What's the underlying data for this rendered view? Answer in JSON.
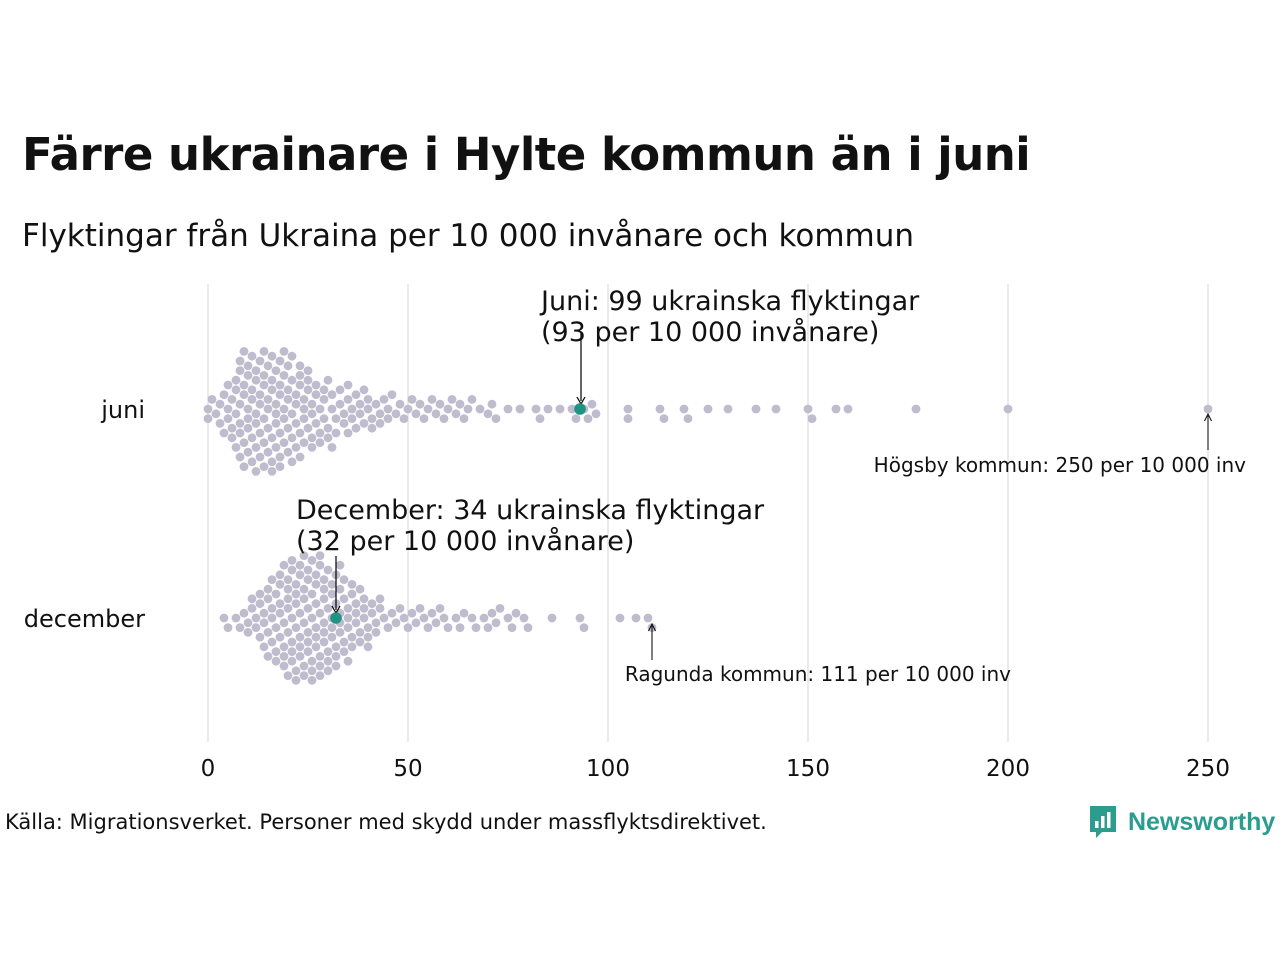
{
  "header": {
    "title": "Färre ukrainare i Hylte kommun än i juni",
    "subtitle": "Flyktingar från Ukraina per 10 000 invånare och kommun"
  },
  "colors": {
    "dot": "#bfbccd",
    "highlight": "#1f9384",
    "grid": "#d6d6d6",
    "text": "#111111",
    "brand": "#2a9d8f"
  },
  "chart_data": {
    "type": "scatter",
    "subtype": "beeswarm",
    "title": "Färre ukrainare i Hylte kommun än i juni",
    "subtitle": "Flyktingar från Ukraina per 10 000 invånare och kommun",
    "xlabel": "",
    "ylabel": "",
    "xlim": [
      0,
      250
    ],
    "xticks": [
      0,
      50,
      100,
      150,
      200,
      250
    ],
    "grid": true,
    "categories": [
      "juni",
      "december"
    ],
    "series": [
      {
        "name": "juni",
        "highlight": {
          "label": "Hylte kommun",
          "value": 93
        },
        "annotation": [
          "Juni: 99 ukrainska flyktingar",
          "(93 per 10 000 invånare)"
        ],
        "outlier": {
          "text": "Högsby kommun: 250 per 10 000 inv",
          "value": 250
        },
        "values": [
          0,
          0,
          1,
          2,
          3,
          3,
          4,
          4,
          5,
          5,
          5,
          6,
          6,
          6,
          7,
          7,
          7,
          7,
          8,
          8,
          8,
          8,
          8,
          8,
          9,
          9,
          9,
          9,
          9,
          10,
          10,
          10,
          10,
          10,
          10,
          11,
          11,
          11,
          11,
          11,
          12,
          12,
          12,
          12,
          12,
          12,
          13,
          13,
          13,
          13,
          13,
          14,
          14,
          14,
          14,
          14,
          14,
          15,
          15,
          15,
          15,
          15,
          16,
          16,
          16,
          16,
          16,
          16,
          17,
          17,
          17,
          17,
          17,
          18,
          18,
          18,
          18,
          18,
          18,
          19,
          19,
          19,
          19,
          19,
          20,
          20,
          20,
          20,
          20,
          21,
          21,
          21,
          21,
          21,
          22,
          22,
          22,
          22,
          23,
          23,
          23,
          23,
          23,
          24,
          24,
          24,
          24,
          25,
          25,
          25,
          25,
          26,
          26,
          26,
          26,
          27,
          27,
          27,
          28,
          28,
          28,
          29,
          29,
          29,
          30,
          30,
          30,
          31,
          31,
          31,
          32,
          32,
          33,
          33,
          34,
          34,
          35,
          35,
          35,
          36,
          36,
          37,
          37,
          38,
          38,
          39,
          39,
          40,
          40,
          41,
          41,
          42,
          43,
          43,
          44,
          45,
          45,
          46,
          47,
          48,
          49,
          50,
          51,
          52,
          53,
          54,
          55,
          56,
          57,
          58,
          59,
          60,
          61,
          62,
          63,
          64,
          65,
          66,
          68,
          70,
          71,
          72,
          75,
          78,
          82,
          83,
          85,
          88,
          91,
          92,
          94,
          95,
          96,
          97,
          105,
          105,
          113,
          114,
          119,
          120,
          125,
          130,
          137,
          142,
          150,
          151,
          157,
          160,
          177,
          200,
          250
        ]
      },
      {
        "name": "december",
        "highlight": {
          "label": "Hylte kommun",
          "value": 32
        },
        "annotation": [
          "December: 34 ukrainska flyktingar",
          "(32 per 10 000 invånare)"
        ],
        "outlier": {
          "text": "Ragunda kommun: 111 per 10 000 inv",
          "value": 111
        },
        "values": [
          4,
          5,
          7,
          8,
          9,
          10,
          10,
          11,
          11,
          12,
          12,
          13,
          13,
          13,
          14,
          14,
          14,
          15,
          15,
          15,
          15,
          16,
          16,
          16,
          16,
          17,
          17,
          17,
          17,
          18,
          18,
          18,
          18,
          18,
          19,
          19,
          19,
          19,
          19,
          20,
          20,
          20,
          20,
          20,
          20,
          21,
          21,
          21,
          21,
          21,
          21,
          22,
          22,
          22,
          22,
          22,
          22,
          23,
          23,
          23,
          23,
          23,
          23,
          24,
          24,
          24,
          24,
          24,
          24,
          25,
          25,
          25,
          25,
          25,
          25,
          26,
          26,
          26,
          26,
          26,
          26,
          27,
          27,
          27,
          27,
          27,
          27,
          28,
          28,
          28,
          28,
          28,
          28,
          29,
          29,
          29,
          29,
          29,
          29,
          30,
          30,
          30,
          30,
          30,
          31,
          31,
          31,
          31,
          31,
          32,
          32,
          32,
          32,
          32,
          33,
          33,
          33,
          33,
          33,
          34,
          34,
          34,
          34,
          35,
          35,
          35,
          35,
          36,
          36,
          36,
          36,
          37,
          37,
          37,
          38,
          38,
          38,
          39,
          39,
          39,
          40,
          40,
          40,
          41,
          41,
          42,
          42,
          43,
          43,
          44,
          45,
          46,
          47,
          48,
          49,
          50,
          51,
          52,
          53,
          54,
          55,
          56,
          57,
          58,
          59,
          60,
          62,
          63,
          64,
          66,
          67,
          69,
          70,
          71,
          72,
          73,
          75,
          76,
          77,
          79,
          80,
          86,
          93,
          94,
          103,
          107,
          110,
          111
        ]
      }
    ]
  },
  "footer": {
    "source": "Källa: Migrationsverket. Personer med skydd under massflyktsdirektivet.",
    "brand": "Newsworthy"
  }
}
